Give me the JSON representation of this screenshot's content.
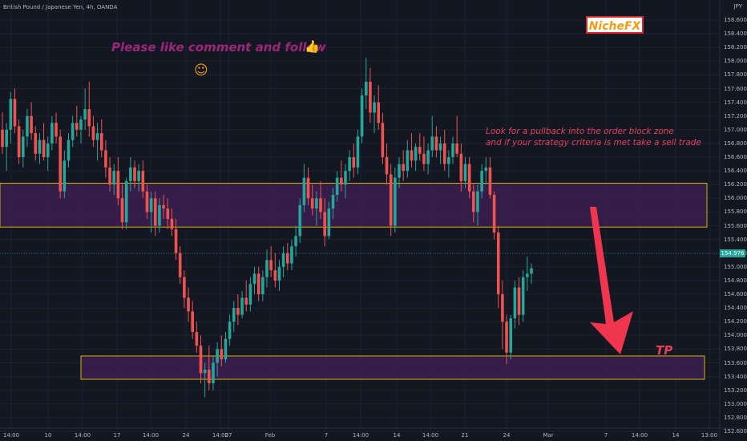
{
  "header": {
    "symbol_line": "British Pound / Japanese Yen, 4h, OANDA",
    "currency": "JPY"
  },
  "annotations": {
    "promo_text": "Please like comment and follow",
    "thumb_glyph": "👍",
    "smile_glyph": "☺",
    "brand_logo": "NicheFX",
    "note_line1": "Look for a pullback into the order block zone",
    "note_line2": "and if your strategy criteria is met take a sell trade",
    "tp_label": "TP"
  },
  "last_price": "154.976",
  "colors": {
    "background": "#131722",
    "up": "#26a69a",
    "down": "#ef5350",
    "zone_fill": "#3b1f4f",
    "zone_border": "#d4b106",
    "arrow": "#f0364f",
    "accent_text": "#9c2779"
  },
  "zones": [
    {
      "name": "order block zone",
      "from_price": 155.58,
      "to_price": 156.22
    },
    {
      "name": "take profit zone",
      "from_price": 153.36,
      "to_price": 153.7
    }
  ],
  "price_axis": {
    "labels": [
      "158.600",
      "158.400",
      "158.200",
      "158.000",
      "157.800",
      "157.600",
      "157.400",
      "157.200",
      "157.000",
      "156.800",
      "156.600",
      "156.400",
      "156.200",
      "156.000",
      "155.800",
      "155.600",
      "155.400",
      "155.200",
      "155.000",
      "154.800",
      "154.600",
      "154.400",
      "154.200",
      "154.000",
      "153.800",
      "153.600",
      "153.400",
      "153.200",
      "153.000",
      "152.800",
      "152.600"
    ]
  },
  "time_axis": {
    "labels": [
      "14:00",
      "10",
      "14:00",
      "17",
      "14:00",
      "24",
      "14:00",
      "27",
      "Feb",
      "7",
      "14:00",
      "14",
      "14:00",
      "21",
      "24",
      "Mar",
      "7",
      "14:00",
      "14",
      "13:00"
    ]
  },
  "chart_data": {
    "type": "candlestick",
    "series": [
      {
        "o": 157.0,
        "h": 157.25,
        "l": 156.65,
        "c": 156.75
      },
      {
        "o": 156.75,
        "h": 157.1,
        "l": 156.4,
        "c": 157.0
      },
      {
        "o": 157.0,
        "h": 157.55,
        "l": 156.8,
        "c": 157.45
      },
      {
        "o": 157.45,
        "h": 157.6,
        "l": 156.95,
        "c": 157.05
      },
      {
        "o": 157.05,
        "h": 157.15,
        "l": 156.5,
        "c": 156.6
      },
      {
        "o": 156.6,
        "h": 157.0,
        "l": 156.45,
        "c": 156.9
      },
      {
        "o": 156.9,
        "h": 157.3,
        "l": 156.75,
        "c": 157.2
      },
      {
        "o": 157.2,
        "h": 157.4,
        "l": 156.85,
        "c": 156.95
      },
      {
        "o": 156.95,
        "h": 157.05,
        "l": 156.55,
        "c": 156.65
      },
      {
        "o": 156.65,
        "h": 156.95,
        "l": 156.5,
        "c": 156.85
      },
      {
        "o": 156.85,
        "h": 157.1,
        "l": 156.55,
        "c": 156.6
      },
      {
        "o": 156.6,
        "h": 156.9,
        "l": 156.4,
        "c": 156.8
      },
      {
        "o": 156.8,
        "h": 157.2,
        "l": 156.7,
        "c": 157.1
      },
      {
        "o": 157.1,
        "h": 157.25,
        "l": 156.8,
        "c": 156.9
      },
      {
        "o": 156.9,
        "h": 157.0,
        "l": 156.0,
        "c": 156.1
      },
      {
        "o": 156.1,
        "h": 156.7,
        "l": 156.0,
        "c": 156.55
      },
      {
        "o": 156.55,
        "h": 156.95,
        "l": 156.45,
        "c": 156.85
      },
      {
        "o": 156.85,
        "h": 157.2,
        "l": 156.75,
        "c": 157.1
      },
      {
        "o": 157.1,
        "h": 157.35,
        "l": 156.9,
        "c": 157.0
      },
      {
        "o": 157.0,
        "h": 157.2,
        "l": 156.8,
        "c": 157.15
      },
      {
        "o": 157.15,
        "h": 157.6,
        "l": 157.0,
        "c": 157.3
      },
      {
        "o": 157.3,
        "h": 157.7,
        "l": 156.9,
        "c": 157.05
      },
      {
        "o": 157.05,
        "h": 157.2,
        "l": 156.75,
        "c": 156.85
      },
      {
        "o": 156.85,
        "h": 157.1,
        "l": 156.55,
        "c": 156.95
      },
      {
        "o": 156.95,
        "h": 157.15,
        "l": 156.6,
        "c": 156.7
      },
      {
        "o": 156.7,
        "h": 156.85,
        "l": 156.3,
        "c": 156.45
      },
      {
        "o": 156.45,
        "h": 156.6,
        "l": 156.1,
        "c": 156.2
      },
      {
        "o": 156.2,
        "h": 156.5,
        "l": 156.05,
        "c": 156.4
      },
      {
        "o": 156.4,
        "h": 156.6,
        "l": 155.9,
        "c": 156.0
      },
      {
        "o": 156.0,
        "h": 156.2,
        "l": 155.55,
        "c": 155.65
      },
      {
        "o": 155.65,
        "h": 156.3,
        "l": 155.55,
        "c": 156.25
      },
      {
        "o": 156.25,
        "h": 156.6,
        "l": 156.1,
        "c": 156.45
      },
      {
        "o": 156.45,
        "h": 156.55,
        "l": 156.15,
        "c": 156.25
      },
      {
        "o": 156.25,
        "h": 156.5,
        "l": 156.1,
        "c": 156.4
      },
      {
        "o": 156.4,
        "h": 156.55,
        "l": 156.0,
        "c": 156.1
      },
      {
        "o": 156.1,
        "h": 156.2,
        "l": 155.7,
        "c": 155.8
      },
      {
        "o": 155.8,
        "h": 156.1,
        "l": 155.5,
        "c": 156.0
      },
      {
        "o": 156.0,
        "h": 156.1,
        "l": 155.45,
        "c": 155.6
      },
      {
        "o": 155.6,
        "h": 156.0,
        "l": 155.5,
        "c": 155.9
      },
      {
        "o": 155.9,
        "h": 156.05,
        "l": 155.7,
        "c": 155.85
      },
      {
        "o": 155.85,
        "h": 156.0,
        "l": 155.55,
        "c": 155.7
      },
      {
        "o": 155.7,
        "h": 155.85,
        "l": 155.45,
        "c": 155.55
      },
      {
        "o": 155.55,
        "h": 155.7,
        "l": 155.1,
        "c": 155.2
      },
      {
        "o": 155.2,
        "h": 155.3,
        "l": 154.75,
        "c": 154.85
      },
      {
        "o": 154.85,
        "h": 154.95,
        "l": 154.4,
        "c": 154.55
      },
      {
        "o": 154.55,
        "h": 154.7,
        "l": 154.2,
        "c": 154.35
      },
      {
        "o": 154.35,
        "h": 154.5,
        "l": 153.95,
        "c": 154.05
      },
      {
        "o": 154.05,
        "h": 154.2,
        "l": 153.75,
        "c": 153.85
      },
      {
        "o": 153.85,
        "h": 154.0,
        "l": 153.3,
        "c": 153.45
      },
      {
        "o": 153.45,
        "h": 153.6,
        "l": 153.1,
        "c": 153.5
      },
      {
        "o": 153.5,
        "h": 153.85,
        "l": 153.2,
        "c": 153.3
      },
      {
        "o": 153.3,
        "h": 153.7,
        "l": 153.2,
        "c": 153.6
      },
      {
        "o": 153.6,
        "h": 153.9,
        "l": 153.4,
        "c": 153.8
      },
      {
        "o": 153.8,
        "h": 154.0,
        "l": 153.55,
        "c": 153.65
      },
      {
        "o": 153.65,
        "h": 154.05,
        "l": 153.6,
        "c": 153.95
      },
      {
        "o": 153.95,
        "h": 154.3,
        "l": 153.85,
        "c": 154.2
      },
      {
        "o": 154.2,
        "h": 154.5,
        "l": 154.05,
        "c": 154.4
      },
      {
        "o": 154.4,
        "h": 154.6,
        "l": 154.15,
        "c": 154.3
      },
      {
        "o": 154.3,
        "h": 154.65,
        "l": 154.25,
        "c": 154.55
      },
      {
        "o": 154.55,
        "h": 154.8,
        "l": 154.35,
        "c": 154.45
      },
      {
        "o": 154.45,
        "h": 154.85,
        "l": 154.35,
        "c": 154.75
      },
      {
        "o": 154.75,
        "h": 155.0,
        "l": 154.6,
        "c": 154.9
      },
      {
        "o": 154.9,
        "h": 155.0,
        "l": 154.5,
        "c": 154.6
      },
      {
        "o": 154.6,
        "h": 154.95,
        "l": 154.5,
        "c": 154.85
      },
      {
        "o": 154.85,
        "h": 155.25,
        "l": 154.7,
        "c": 155.1
      },
      {
        "o": 155.1,
        "h": 155.3,
        "l": 154.85,
        "c": 154.95
      },
      {
        "o": 154.95,
        "h": 155.2,
        "l": 154.7,
        "c": 154.8
      },
      {
        "o": 154.8,
        "h": 155.1,
        "l": 154.65,
        "c": 155.0
      },
      {
        "o": 155.0,
        "h": 155.3,
        "l": 154.85,
        "c": 155.2
      },
      {
        "o": 155.2,
        "h": 155.35,
        "l": 154.95,
        "c": 155.05
      },
      {
        "o": 155.05,
        "h": 155.4,
        "l": 154.95,
        "c": 155.3
      },
      {
        "o": 155.3,
        "h": 155.6,
        "l": 155.15,
        "c": 155.45
      },
      {
        "o": 155.45,
        "h": 156.0,
        "l": 155.35,
        "c": 155.9
      },
      {
        "o": 155.9,
        "h": 156.5,
        "l": 155.8,
        "c": 156.3
      },
      {
        "o": 156.3,
        "h": 156.45,
        "l": 155.9,
        "c": 156.0
      },
      {
        "o": 156.0,
        "h": 156.2,
        "l": 155.75,
        "c": 155.85
      },
      {
        "o": 155.85,
        "h": 156.1,
        "l": 155.6,
        "c": 156.0
      },
      {
        "o": 156.0,
        "h": 156.25,
        "l": 155.7,
        "c": 155.8
      },
      {
        "o": 155.8,
        "h": 156.0,
        "l": 155.3,
        "c": 155.45
      },
      {
        "o": 155.45,
        "h": 155.95,
        "l": 155.4,
        "c": 155.85
      },
      {
        "o": 155.85,
        "h": 156.15,
        "l": 155.7,
        "c": 156.05
      },
      {
        "o": 156.05,
        "h": 156.4,
        "l": 155.95,
        "c": 156.3
      },
      {
        "o": 156.3,
        "h": 156.55,
        "l": 156.1,
        "c": 156.2
      },
      {
        "o": 156.2,
        "h": 156.5,
        "l": 156.0,
        "c": 156.4
      },
      {
        "o": 156.4,
        "h": 156.7,
        "l": 156.25,
        "c": 156.6
      },
      {
        "o": 156.6,
        "h": 156.8,
        "l": 156.3,
        "c": 156.45
      },
      {
        "o": 156.45,
        "h": 157.0,
        "l": 156.35,
        "c": 156.9
      },
      {
        "o": 156.9,
        "h": 157.6,
        "l": 156.8,
        "c": 157.5
      },
      {
        "o": 157.5,
        "h": 158.05,
        "l": 157.3,
        "c": 157.7
      },
      {
        "o": 157.7,
        "h": 157.9,
        "l": 157.1,
        "c": 157.25
      },
      {
        "o": 157.25,
        "h": 157.5,
        "l": 156.95,
        "c": 157.4
      },
      {
        "o": 157.4,
        "h": 157.65,
        "l": 157.0,
        "c": 157.1
      },
      {
        "o": 157.1,
        "h": 157.25,
        "l": 156.5,
        "c": 156.6
      },
      {
        "o": 156.6,
        "h": 156.8,
        "l": 156.2,
        "c": 156.35
      },
      {
        "o": 156.35,
        "h": 156.5,
        "l": 155.45,
        "c": 155.6
      },
      {
        "o": 155.6,
        "h": 156.45,
        "l": 155.5,
        "c": 156.3
      },
      {
        "o": 156.3,
        "h": 156.6,
        "l": 156.15,
        "c": 156.5
      },
      {
        "o": 156.5,
        "h": 156.7,
        "l": 156.25,
        "c": 156.4
      },
      {
        "o": 156.4,
        "h": 156.85,
        "l": 156.3,
        "c": 156.7
      },
      {
        "o": 156.7,
        "h": 156.95,
        "l": 156.45,
        "c": 156.55
      },
      {
        "o": 156.55,
        "h": 156.8,
        "l": 156.4,
        "c": 156.75
      },
      {
        "o": 156.75,
        "h": 156.95,
        "l": 156.55,
        "c": 156.65
      },
      {
        "o": 156.65,
        "h": 156.9,
        "l": 156.4,
        "c": 156.5
      },
      {
        "o": 156.5,
        "h": 156.8,
        "l": 156.35,
        "c": 156.7
      },
      {
        "o": 156.7,
        "h": 157.2,
        "l": 156.6,
        "c": 156.9
      },
      {
        "o": 156.9,
        "h": 157.05,
        "l": 156.6,
        "c": 156.7
      },
      {
        "o": 156.7,
        "h": 156.9,
        "l": 156.5,
        "c": 156.8
      },
      {
        "o": 156.8,
        "h": 157.0,
        "l": 156.4,
        "c": 156.5
      },
      {
        "o": 156.5,
        "h": 156.7,
        "l": 156.3,
        "c": 156.6
      },
      {
        "o": 156.6,
        "h": 156.9,
        "l": 156.5,
        "c": 156.8
      },
      {
        "o": 156.8,
        "h": 157.2,
        "l": 156.6,
        "c": 156.65
      },
      {
        "o": 156.65,
        "h": 156.8,
        "l": 156.1,
        "c": 156.25
      },
      {
        "o": 156.25,
        "h": 156.6,
        "l": 156.15,
        "c": 156.5
      },
      {
        "o": 156.5,
        "h": 156.6,
        "l": 156.0,
        "c": 156.1
      },
      {
        "o": 156.1,
        "h": 156.2,
        "l": 155.65,
        "c": 155.8
      },
      {
        "o": 155.8,
        "h": 156.2,
        "l": 155.6,
        "c": 156.1
      },
      {
        "o": 156.1,
        "h": 156.5,
        "l": 156.0,
        "c": 156.4
      },
      {
        "o": 156.4,
        "h": 156.6,
        "l": 156.2,
        "c": 156.45
      },
      {
        "o": 156.45,
        "h": 156.6,
        "l": 156.0,
        "c": 156.05
      },
      {
        "o": 156.05,
        "h": 156.1,
        "l": 155.4,
        "c": 155.5
      },
      {
        "o": 155.5,
        "h": 155.6,
        "l": 154.4,
        "c": 154.6
      },
      {
        "o": 154.6,
        "h": 154.8,
        "l": 153.8,
        "c": 154.2
      },
      {
        "o": 154.2,
        "h": 154.3,
        "l": 153.58,
        "c": 153.75
      },
      {
        "o": 153.75,
        "h": 154.3,
        "l": 153.65,
        "c": 154.25
      },
      {
        "o": 154.25,
        "h": 154.8,
        "l": 154.1,
        "c": 154.7
      },
      {
        "o": 154.7,
        "h": 154.85,
        "l": 154.15,
        "c": 154.3
      },
      {
        "o": 154.3,
        "h": 154.95,
        "l": 154.2,
        "c": 154.85
      },
      {
        "o": 154.85,
        "h": 155.15,
        "l": 154.65,
        "c": 154.9
      },
      {
        "o": 154.9,
        "h": 155.05,
        "l": 154.75,
        "c": 154.98
      }
    ]
  }
}
